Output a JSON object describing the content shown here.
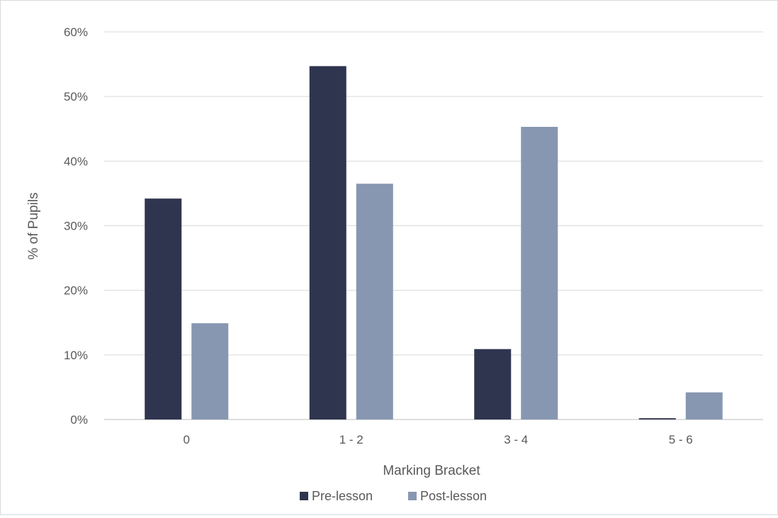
{
  "chart_data": {
    "type": "bar",
    "title": "",
    "xlabel": "Marking Bracket",
    "ylabel": "% of Pupils",
    "categories": [
      "0",
      "1 - 2",
      "3 - 4",
      "5 - 6"
    ],
    "series": [
      {
        "name": "Pre-lesson",
        "values": [
          34.2,
          54.7,
          10.9,
          0.2
        ],
        "color": "#30354f"
      },
      {
        "name": "Post-lesson",
        "values": [
          14.9,
          36.5,
          45.3,
          4.2
        ],
        "color": "#8797b1"
      }
    ],
    "ylim": [
      0,
      60
    ],
    "ytick_step": 10,
    "ytick_labels": [
      "0%",
      "10%",
      "20%",
      "30%",
      "40%",
      "50%",
      "60%"
    ],
    "grid": true,
    "legend_position": "bottom"
  }
}
